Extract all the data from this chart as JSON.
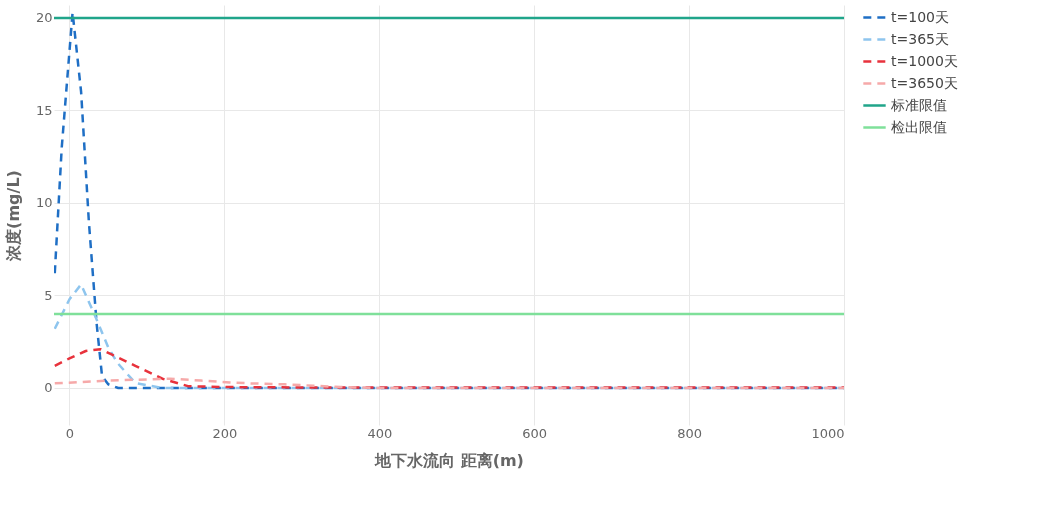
{
  "chart_data": {
    "type": "line",
    "xlabel": "地下水流向 距离(m)",
    "ylabel": "浓度(mg/L)",
    "xlim": [
      -20,
      1000
    ],
    "ylim": [
      -2,
      20.7
    ],
    "xticks": [
      0,
      200,
      400,
      600,
      800,
      1000
    ],
    "yticks": [
      0,
      5,
      10,
      15,
      20
    ],
    "grid": true,
    "legend": "top right",
    "line_style": "dashed",
    "marker": "none",
    "series": [
      {
        "name": "t=100天",
        "color": "#1f6fc5",
        "x": [
          -19,
          -10,
          4,
          15,
          25,
          35,
          42,
          50,
          63,
          100,
          200,
          400,
          600,
          800,
          1000
        ],
        "values": [
          6.2,
          13,
          20.3,
          16,
          9,
          3.5,
          0.65,
          0.2,
          0,
          0,
          0,
          0,
          0,
          0,
          0
        ]
      },
      {
        "name": "t=365天",
        "color": "#8ec5ee",
        "x": [
          -19,
          0,
          15,
          33,
          50,
          62,
          85,
          120,
          200,
          400,
          600,
          800,
          1000
        ],
        "values": [
          3.2,
          4.8,
          5.6,
          3.9,
          2.2,
          1.35,
          0.27,
          0,
          0,
          0,
          0,
          0,
          0
        ]
      },
      {
        "name": "t=1000天",
        "color": "#e8323c",
        "x": [
          -19,
          0,
          21,
          40,
          55,
          85,
          120,
          153,
          200,
          300,
          400,
          600,
          800,
          1000
        ],
        "values": [
          1.2,
          1.6,
          2.0,
          2.1,
          1.8,
          1.2,
          0.5,
          0.1,
          0.05,
          0.03,
          0.03,
          0.03,
          0.03,
          0.03
        ]
      },
      {
        "name": "t=3650天",
        "color": "#f6a9a9",
        "x": [
          -19,
          50,
          130,
          170,
          207,
          233,
          278,
          350,
          400,
          600,
          800,
          1000
        ],
        "values": [
          0.25,
          0.4,
          0.5,
          0.4,
          0.3,
          0.25,
          0.2,
          0.05,
          0,
          0,
          0,
          0
        ]
      },
      {
        "name": "标准限值",
        "color": "#20a58a",
        "line_style": "solid",
        "x": [
          -20,
          1000
        ],
        "values": [
          20,
          20
        ]
      },
      {
        "name": "检出限值",
        "color": "#7fe09a",
        "line_style": "solid",
        "x": [
          -20,
          1000
        ],
        "values": [
          4,
          4
        ]
      }
    ]
  }
}
